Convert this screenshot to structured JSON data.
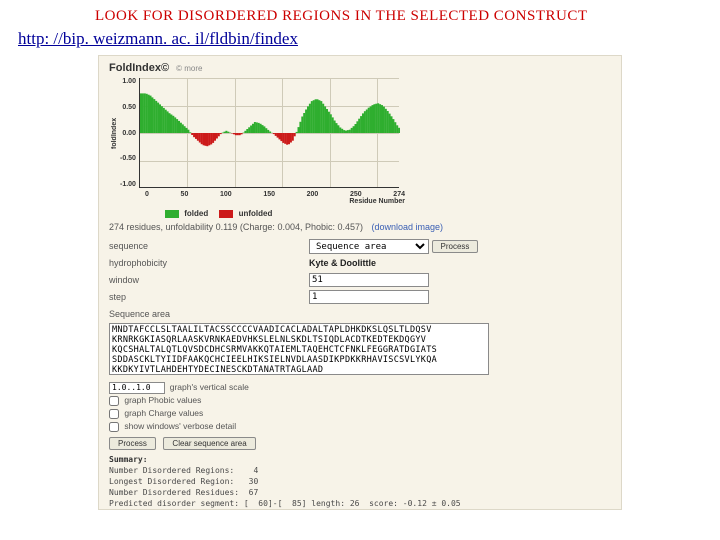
{
  "slide": {
    "title": "LOOK FOR DISORDERED REGIONS IN THE SELECTED CONSTRUCT",
    "link": "http: //bip. weizmann. ac. il/fldbin/findex"
  },
  "app": {
    "title": "FoldIndex©",
    "more": "© more",
    "chart": {
      "type": "area-bar",
      "ylabel": "foldIndex",
      "yticks": [
        "1.00",
        "0.50",
        "0.00",
        "-0.50",
        "-1.00"
      ],
      "ylim": [
        -1.0,
        1.0
      ],
      "xlabel": "Residue Number",
      "xticks": [
        "0",
        "50",
        "100",
        "150",
        "200",
        "250",
        "274"
      ],
      "xlim": [
        0,
        274
      ],
      "background_color": "#f7f3e8",
      "grid_color": "#cfcab8",
      "axis_color": "#333333",
      "folded_color": "#2fae2f",
      "unfolded_color": "#cc1a1a",
      "label_fontsize": 7,
      "bar_width": 1,
      "points": [
        {
          "x": 0,
          "y": 0.72
        },
        {
          "x": 5,
          "y": 0.72
        },
        {
          "x": 10,
          "y": 0.68
        },
        {
          "x": 15,
          "y": 0.6
        },
        {
          "x": 20,
          "y": 0.52
        },
        {
          "x": 25,
          "y": 0.44
        },
        {
          "x": 30,
          "y": 0.36
        },
        {
          "x": 35,
          "y": 0.3
        },
        {
          "x": 40,
          "y": 0.22
        },
        {
          "x": 45,
          "y": 0.14
        },
        {
          "x": 50,
          "y": 0.06
        },
        {
          "x": 55,
          "y": -0.06
        },
        {
          "x": 60,
          "y": -0.14
        },
        {
          "x": 65,
          "y": -0.22
        },
        {
          "x": 70,
          "y": -0.24
        },
        {
          "x": 75,
          "y": -0.2
        },
        {
          "x": 80,
          "y": -0.1
        },
        {
          "x": 85,
          "y": 0.0
        },
        {
          "x": 90,
          "y": 0.04
        },
        {
          "x": 95,
          "y": 0.0
        },
        {
          "x": 100,
          "y": -0.04
        },
        {
          "x": 105,
          "y": -0.04
        },
        {
          "x": 110,
          "y": 0.04
        },
        {
          "x": 115,
          "y": 0.12
        },
        {
          "x": 120,
          "y": 0.2
        },
        {
          "x": 125,
          "y": 0.18
        },
        {
          "x": 130,
          "y": 0.12
        },
        {
          "x": 135,
          "y": 0.04
        },
        {
          "x": 140,
          "y": -0.02
        },
        {
          "x": 145,
          "y": -0.1
        },
        {
          "x": 150,
          "y": -0.18
        },
        {
          "x": 155,
          "y": -0.22
        },
        {
          "x": 160,
          "y": -0.14
        },
        {
          "x": 165,
          "y": 0.06
        },
        {
          "x": 170,
          "y": 0.3
        },
        {
          "x": 175,
          "y": 0.46
        },
        {
          "x": 180,
          "y": 0.58
        },
        {
          "x": 185,
          "y": 0.62
        },
        {
          "x": 190,
          "y": 0.58
        },
        {
          "x": 195,
          "y": 0.46
        },
        {
          "x": 200,
          "y": 0.34
        },
        {
          "x": 205,
          "y": 0.2
        },
        {
          "x": 210,
          "y": 0.1
        },
        {
          "x": 215,
          "y": 0.04
        },
        {
          "x": 220,
          "y": 0.06
        },
        {
          "x": 225,
          "y": 0.14
        },
        {
          "x": 230,
          "y": 0.26
        },
        {
          "x": 235,
          "y": 0.38
        },
        {
          "x": 240,
          "y": 0.46
        },
        {
          "x": 245,
          "y": 0.52
        },
        {
          "x": 250,
          "y": 0.54
        },
        {
          "x": 255,
          "y": 0.5
        },
        {
          "x": 260,
          "y": 0.4
        },
        {
          "x": 265,
          "y": 0.28
        },
        {
          "x": 270,
          "y": 0.14
        },
        {
          "x": 274,
          "y": 0.05
        }
      ]
    },
    "legend": {
      "folded": "folded",
      "unfolded": "unfolded"
    },
    "result_line": "274 residues, unfoldability 0.119 (Charge: 0.004, Phobic: 0.457)",
    "download": "(download image)",
    "form": {
      "seq_lbl": "sequence",
      "seq_selector": "Sequence area",
      "process_btn": "Process",
      "hydro_lbl": "hydrophobicity",
      "hydro_val": "Kyte & Doolittle",
      "window_lbl": "window",
      "window_val": "51",
      "step_lbl": "step",
      "step_val": "1",
      "seq_area_lbl": "Sequence area",
      "seq_text": "MNDTAFCCLSLTAALILTACSSCCCCVAADICACLADALTAPLDHKDKSLQSLTLDQSV\nKRNRKGKIASQRLAASKVRNKAEDVHKSLELNLSKDLTSIQDLACDTKEDTEKDQGYV\nKQCSHALTALQTLQVSDCDHCSRMVAKKQTAIEMLTAQEHCTCFNKLFEGGRATDGIATS\nSDDASCKLTYIIDFAAKQCHCIEELHIKSIELNVDLAASDIKPDKKRHAVISCSVLYKQA\nKKDKYIVTLAHDEHTYDECINESCKDTANATRTAGLAAD",
      "scale_val": "1.0..1.0",
      "opt_scale": "graph's vertical scale",
      "opt_phobic": "graph Phobic values",
      "opt_charge": "graph Charge values",
      "opt_verbose": "show windows' verbose detail",
      "clear_btn": "Clear sequence area"
    },
    "summary": {
      "hdr": "Summary:",
      "l1": "Number Disordered Regions:    4",
      "l2": "Longest Disordered Region:   30",
      "l3": "Number Disordered Residues:  67",
      "l4": "Predicted disorder segment: [  60]-[  85] length: 26  score: -0.12 ± 0.05"
    }
  }
}
